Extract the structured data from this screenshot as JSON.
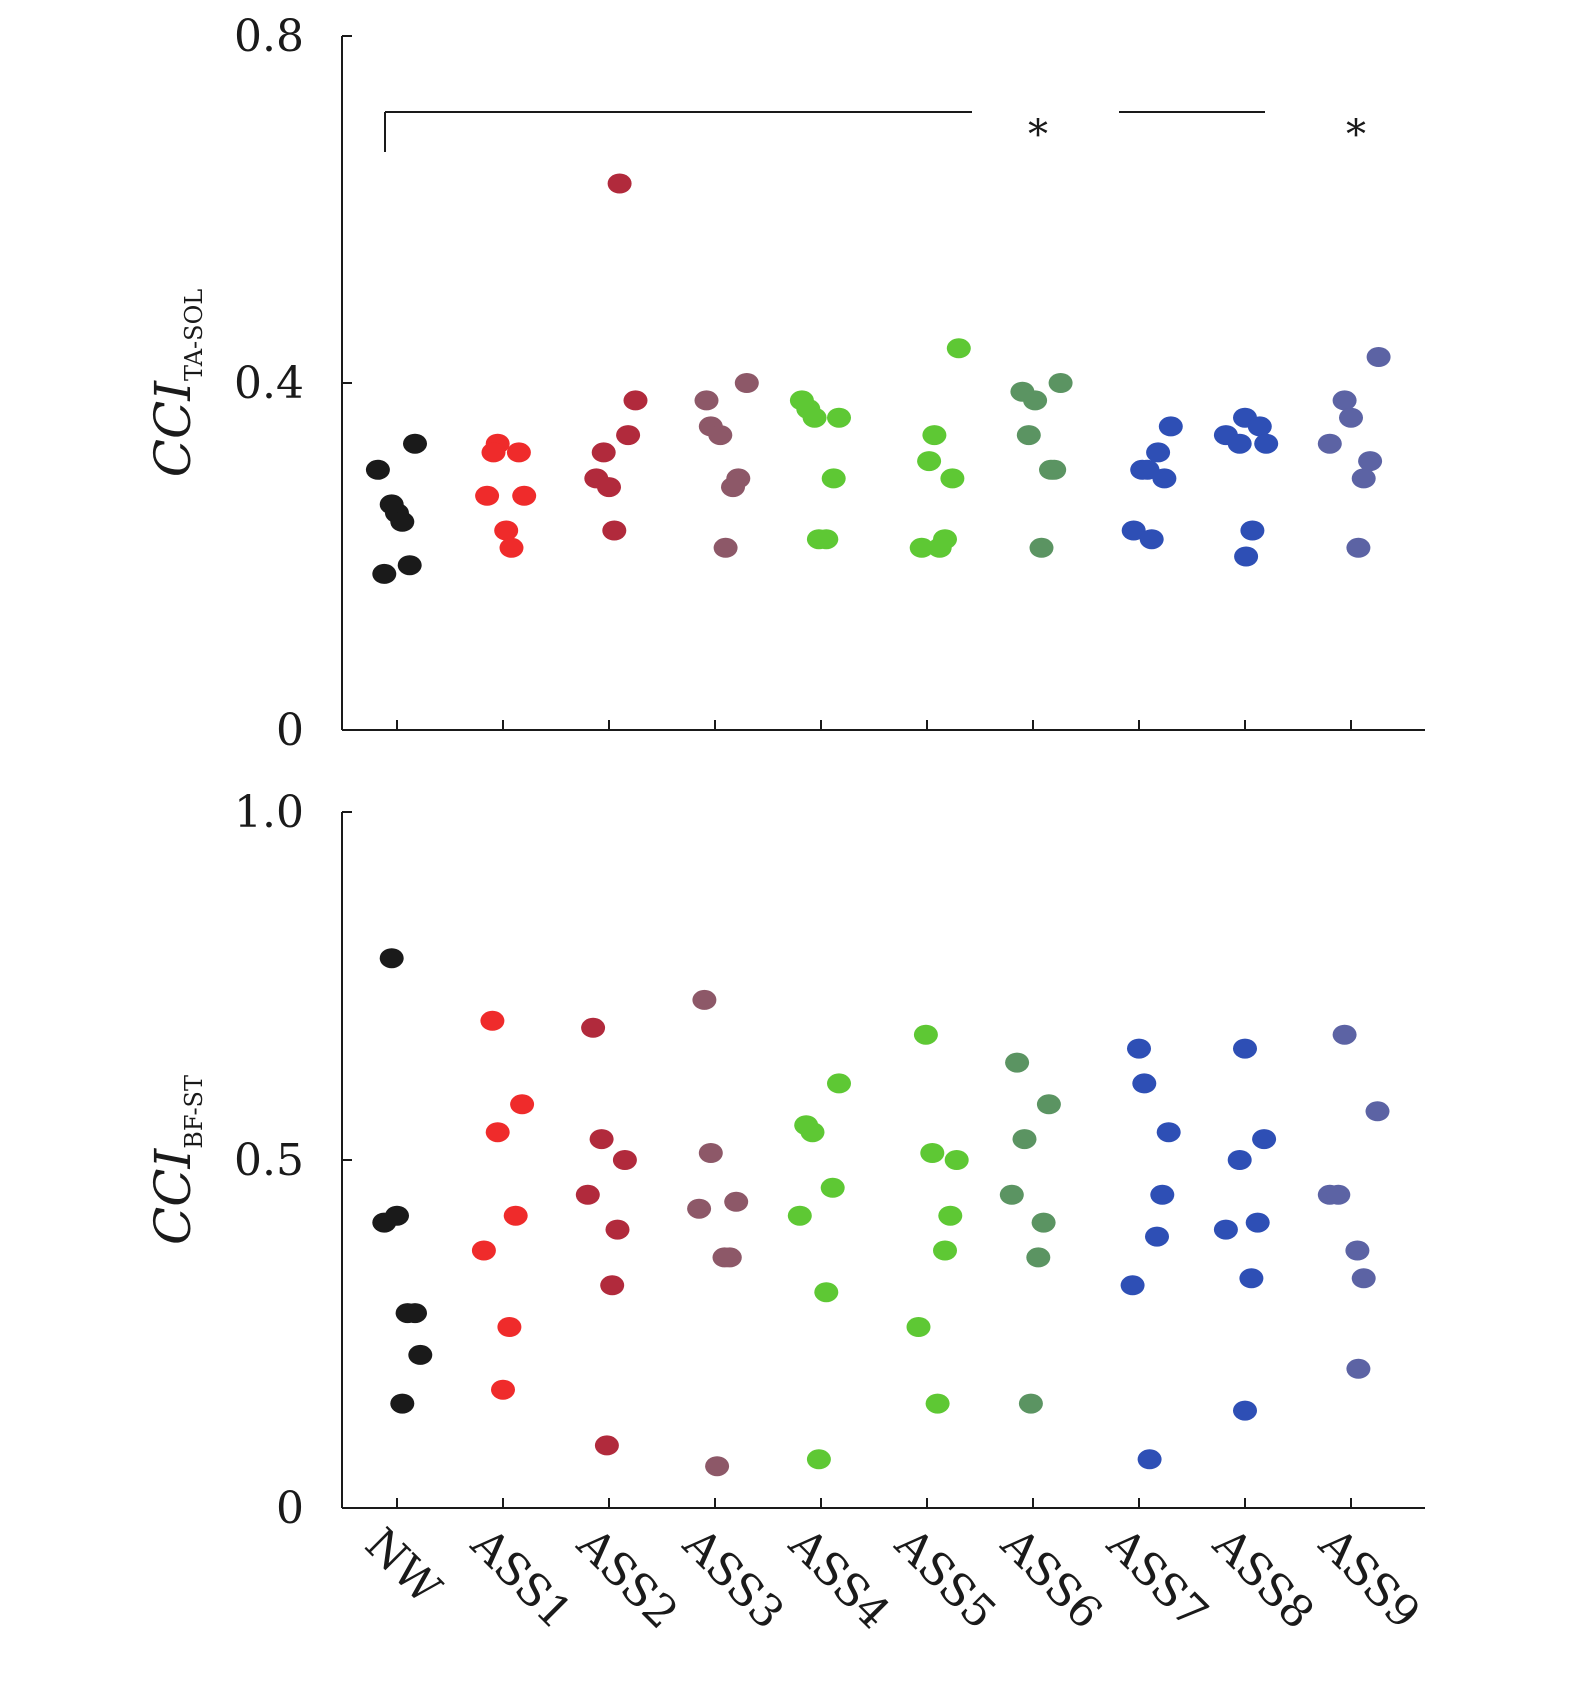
{
  "chart_data": [
    {
      "type": "scatter",
      "ylabel_main": "CCI",
      "ylabel_sub": "TA-SOL",
      "ylim": [
        0,
        0.8
      ],
      "yticks": [
        "0",
        "0.4",
        "0.8"
      ],
      "categories": [
        "NW",
        "ASS1",
        "ASS2",
        "ASS3",
        "ASS4",
        "ASS5",
        "ASS6",
        "ASS7",
        "ASS8",
        "ASS9"
      ],
      "significance": [
        {
          "from": "NW",
          "to": "ASS5",
          "label": "*"
        },
        {
          "from": "ASS7",
          "to": "ASS8",
          "label": "*"
        }
      ],
      "series": [
        {
          "category": "NW",
          "color": "#1a1a1a",
          "points": [
            [
              -0.18,
              0.3
            ],
            [
              -0.05,
              0.26
            ],
            [
              0.0,
              0.25
            ],
            [
              0.05,
              0.24
            ],
            [
              0.17,
              0.33
            ],
            [
              -0.12,
              0.18
            ],
            [
              0.12,
              0.19
            ]
          ]
        },
        {
          "category": "ASS1",
          "color": "#ef2b2b",
          "points": [
            [
              -0.05,
              0.33
            ],
            [
              -0.09,
              0.32
            ],
            [
              0.15,
              0.32
            ],
            [
              -0.15,
              0.27
            ],
            [
              0.2,
              0.27
            ],
            [
              0.03,
              0.23
            ],
            [
              0.08,
              0.21
            ]
          ]
        },
        {
          "category": "ASS2",
          "color": "#b12a3c",
          "points": [
            [
              0.1,
              0.63
            ],
            [
              0.25,
              0.38
            ],
            [
              0.18,
              0.34
            ],
            [
              -0.05,
              0.32
            ],
            [
              -0.12,
              0.29
            ],
            [
              0.0,
              0.28
            ],
            [
              0.05,
              0.23
            ]
          ]
        },
        {
          "category": "ASS3",
          "color": "#8d5868",
          "points": [
            [
              -0.08,
              0.38
            ],
            [
              0.3,
              0.4
            ],
            [
              -0.04,
              0.35
            ],
            [
              0.05,
              0.34
            ],
            [
              0.22,
              0.29
            ],
            [
              0.17,
              0.28
            ],
            [
              0.1,
              0.21
            ]
          ]
        },
        {
          "category": "ASS4",
          "color": "#5ec834",
          "points": [
            [
              -0.18,
              0.38
            ],
            [
              -0.12,
              0.37
            ],
            [
              -0.06,
              0.36
            ],
            [
              0.17,
              0.36
            ],
            [
              0.12,
              0.29
            ],
            [
              -0.02,
              0.22
            ],
            [
              0.05,
              0.22
            ]
          ]
        },
        {
          "category": "ASS5",
          "color": "#5ec834",
          "points": [
            [
              0.3,
              0.44
            ],
            [
              0.07,
              0.34
            ],
            [
              0.02,
              0.31
            ],
            [
              0.24,
              0.29
            ],
            [
              -0.05,
              0.21
            ],
            [
              0.12,
              0.21
            ],
            [
              0.17,
              0.22
            ]
          ]
        },
        {
          "category": "ASS6",
          "color": "#5b9462",
          "points": [
            [
              -0.1,
              0.39
            ],
            [
              0.02,
              0.38
            ],
            [
              0.26,
              0.4
            ],
            [
              -0.04,
              0.34
            ],
            [
              0.17,
              0.3
            ],
            [
              0.2,
              0.3
            ],
            [
              0.08,
              0.21
            ]
          ]
        },
        {
          "category": "ASS7",
          "color": "#2e4fb5",
          "points": [
            [
              0.3,
              0.35
            ],
            [
              0.18,
              0.32
            ],
            [
              0.03,
              0.3
            ],
            [
              0.08,
              0.3
            ],
            [
              0.24,
              0.29
            ],
            [
              -0.05,
              0.23
            ],
            [
              0.12,
              0.22
            ]
          ]
        },
        {
          "category": "ASS8",
          "color": "#2e4fb5",
          "points": [
            [
              -0.18,
              0.34
            ],
            [
              0.0,
              0.36
            ],
            [
              -0.05,
              0.33
            ],
            [
              0.14,
              0.35
            ],
            [
              0.2,
              0.33
            ],
            [
              0.07,
              0.23
            ],
            [
              0.01,
              0.2
            ]
          ]
        },
        {
          "category": "ASS9",
          "color": "#5c63a4",
          "points": [
            [
              -0.06,
              0.38
            ],
            [
              0.0,
              0.36
            ],
            [
              -0.2,
              0.33
            ],
            [
              0.26,
              0.43
            ],
            [
              0.18,
              0.31
            ],
            [
              0.12,
              0.29
            ],
            [
              0.07,
              0.21
            ]
          ]
        }
      ]
    },
    {
      "type": "scatter",
      "ylabel_main": "CCI",
      "ylabel_sub": "BF-ST",
      "ylim": [
        0,
        1.0
      ],
      "yticks": [
        "0",
        "0.5",
        "1.0"
      ],
      "categories": [
        "NW",
        "ASS1",
        "ASS2",
        "ASS3",
        "ASS4",
        "ASS5",
        "ASS6",
        "ASS7",
        "ASS8",
        "ASS9"
      ],
      "series": [
        {
          "category": "NW",
          "color": "#1a1a1a",
          "points": [
            [
              -0.05,
              0.79
            ],
            [
              -0.12,
              0.41
            ],
            [
              0.0,
              0.42
            ],
            [
              0.1,
              0.28
            ],
            [
              0.17,
              0.28
            ],
            [
              0.22,
              0.22
            ],
            [
              0.05,
              0.15
            ]
          ]
        },
        {
          "category": "ASS1",
          "color": "#ef2b2b",
          "points": [
            [
              -0.1,
              0.7
            ],
            [
              0.18,
              0.58
            ],
            [
              -0.05,
              0.54
            ],
            [
              0.12,
              0.42
            ],
            [
              -0.18,
              0.37
            ],
            [
              0.06,
              0.26
            ],
            [
              0.0,
              0.17
            ]
          ]
        },
        {
          "category": "ASS2",
          "color": "#b12a3c",
          "points": [
            [
              -0.15,
              0.69
            ],
            [
              -0.07,
              0.53
            ],
            [
              0.15,
              0.5
            ],
            [
              -0.2,
              0.45
            ],
            [
              0.08,
              0.4
            ],
            [
              0.03,
              0.32
            ],
            [
              -0.02,
              0.09
            ]
          ]
        },
        {
          "category": "ASS3",
          "color": "#8d5868",
          "points": [
            [
              -0.1,
              0.73
            ],
            [
              -0.04,
              0.51
            ],
            [
              -0.15,
              0.43
            ],
            [
              0.2,
              0.44
            ],
            [
              0.14,
              0.36
            ],
            [
              0.09,
              0.36
            ],
            [
              0.02,
              0.06
            ]
          ]
        },
        {
          "category": "ASS4",
          "color": "#5ec834",
          "points": [
            [
              0.17,
              0.61
            ],
            [
              -0.14,
              0.55
            ],
            [
              -0.08,
              0.54
            ],
            [
              0.11,
              0.46
            ],
            [
              -0.2,
              0.42
            ],
            [
              0.05,
              0.31
            ],
            [
              -0.02,
              0.07
            ]
          ]
        },
        {
          "category": "ASS5",
          "color": "#5ec834",
          "points": [
            [
              -0.01,
              0.68
            ],
            [
              0.05,
              0.51
            ],
            [
              0.28,
              0.5
            ],
            [
              0.22,
              0.42
            ],
            [
              0.17,
              0.37
            ],
            [
              -0.08,
              0.26
            ],
            [
              0.1,
              0.15
            ]
          ]
        },
        {
          "category": "ASS6",
          "color": "#5b9462",
          "points": [
            [
              -0.15,
              0.64
            ],
            [
              0.15,
              0.58
            ],
            [
              -0.08,
              0.53
            ],
            [
              -0.2,
              0.45
            ],
            [
              0.1,
              0.41
            ],
            [
              0.05,
              0.36
            ],
            [
              -0.02,
              0.15
            ]
          ]
        },
        {
          "category": "ASS7",
          "color": "#2e4fb5",
          "points": [
            [
              0.0,
              0.66
            ],
            [
              0.05,
              0.61
            ],
            [
              0.28,
              0.54
            ],
            [
              0.22,
              0.45
            ],
            [
              0.17,
              0.39
            ],
            [
              -0.06,
              0.32
            ],
            [
              0.1,
              0.07
            ]
          ]
        },
        {
          "category": "ASS8",
          "color": "#2e4fb5",
          "points": [
            [
              0.0,
              0.66
            ],
            [
              -0.05,
              0.5
            ],
            [
              0.18,
              0.53
            ],
            [
              -0.18,
              0.4
            ],
            [
              0.12,
              0.41
            ],
            [
              0.06,
              0.33
            ],
            [
              0.0,
              0.14
            ]
          ]
        },
        {
          "category": "ASS9",
          "color": "#5c63a4",
          "points": [
            [
              -0.06,
              0.68
            ],
            [
              -0.2,
              0.45
            ],
            [
              -0.12,
              0.45
            ],
            [
              0.25,
              0.57
            ],
            [
              0.06,
              0.37
            ],
            [
              0.12,
              0.33
            ],
            [
              0.07,
              0.2
            ]
          ]
        }
      ]
    }
  ]
}
